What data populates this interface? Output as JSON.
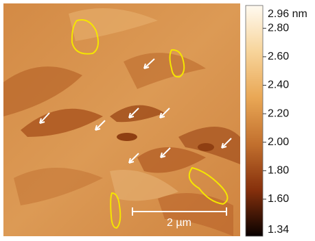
{
  "image": {
    "scale_bar": {
      "label": "2 µm"
    }
  },
  "colorbar": {
    "max": {
      "value": 2.96,
      "label": "2.96 nm"
    },
    "min": {
      "value": 1.34,
      "label": "1.34"
    },
    "ticks": [
      {
        "value": 2.8,
        "label": "2.80"
      },
      {
        "value": 2.6,
        "label": "2.60"
      },
      {
        "value": 2.4,
        "label": "2.40"
      },
      {
        "value": 2.2,
        "label": "2.20"
      },
      {
        "value": 2.0,
        "label": "2.00"
      },
      {
        "value": 1.8,
        "label": "1.80"
      },
      {
        "value": 1.6,
        "label": "1.60"
      }
    ]
  }
}
